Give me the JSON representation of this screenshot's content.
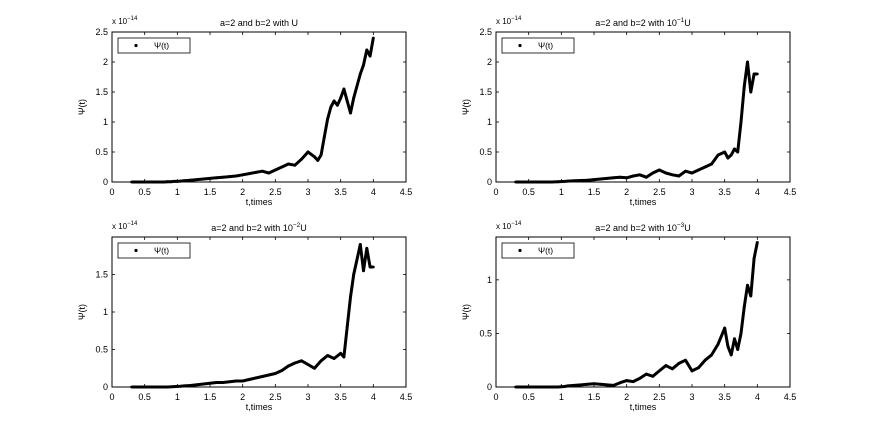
{
  "chart_data": [
    {
      "type": "line",
      "title": "a=2 and b=2 with U",
      "title_parts": {
        "prefix": "a=2 and b=2 with ",
        "base": "",
        "exp": "",
        "suffix": "U"
      },
      "xlabel": "t,times",
      "ylabel": "Ψ(t)",
      "multiplier": {
        "base": "x 10",
        "exp": "−14"
      },
      "legend": "Ψ(t)",
      "legend_position": "top-left",
      "xlim": [
        0,
        4.5
      ],
      "ylim": [
        0,
        2.5
      ],
      "xticks": [
        0,
        0.5,
        1,
        1.5,
        2,
        2.5,
        3,
        3.5,
        4,
        4.5
      ],
      "yticks": [
        0,
        0.5,
        1,
        1.5,
        2,
        2.5
      ],
      "xtick_labels": [
        "0",
        "0.5",
        "1",
        "1.5",
        "2",
        "2.5",
        "3",
        "3.5",
        "4",
        "4.5"
      ],
      "ytick_labels": [
        "0",
        "0.5",
        "1",
        "1.5",
        "2",
        "2.5"
      ],
      "x": [
        0.3,
        0.45,
        0.55,
        0.65,
        0.75,
        0.8,
        0.85,
        0.9,
        0.95,
        1.0,
        1.05,
        1.1,
        1.2,
        1.3,
        1.4,
        1.5,
        1.6,
        1.7,
        1.8,
        1.9,
        2.0,
        2.1,
        2.2,
        2.3,
        2.4,
        2.5,
        2.6,
        2.7,
        2.8,
        2.9,
        3.0,
        3.1,
        3.15,
        3.2,
        3.25,
        3.3,
        3.35,
        3.4,
        3.45,
        3.5,
        3.55,
        3.6,
        3.65,
        3.7,
        3.75,
        3.8,
        3.85,
        3.9,
        3.95,
        4.0
      ],
      "y": [
        0.0,
        0.0,
        0.0,
        0.0,
        0.0,
        0.0,
        0.005,
        0.005,
        0.01,
        0.01,
        0.015,
        0.02,
        0.03,
        0.04,
        0.05,
        0.06,
        0.07,
        0.08,
        0.09,
        0.1,
        0.12,
        0.14,
        0.16,
        0.18,
        0.15,
        0.2,
        0.25,
        0.3,
        0.28,
        0.38,
        0.5,
        0.42,
        0.36,
        0.45,
        0.75,
        1.05,
        1.25,
        1.35,
        1.28,
        1.4,
        1.55,
        1.35,
        1.15,
        1.4,
        1.6,
        1.8,
        1.95,
        2.2,
        2.1,
        2.4
      ]
    },
    {
      "type": "line",
      "title": "a=2 and b=2 with 10⁻¹U",
      "title_parts": {
        "prefix": "a=2 and b=2 with ",
        "base": "10",
        "exp": "−1",
        "suffix": "U"
      },
      "xlabel": "t,times",
      "ylabel": "Ψ(t)",
      "multiplier": {
        "base": "x 10",
        "exp": "−14"
      },
      "legend": "Ψ(t)",
      "legend_position": "top-left",
      "xlim": [
        0,
        4.5
      ],
      "ylim": [
        0,
        2.5
      ],
      "xticks": [
        0,
        0.5,
        1,
        1.5,
        2,
        2.5,
        3,
        3.5,
        4,
        4.5
      ],
      "yticks": [
        0,
        0.5,
        1,
        1.5,
        2,
        2.5
      ],
      "xtick_labels": [
        "0",
        "0.5",
        "1",
        "1.5",
        "2",
        "2.5",
        "3",
        "3.5",
        "4",
        "4.5"
      ],
      "ytick_labels": [
        "0",
        "0.5",
        "1",
        "1.5",
        "2",
        "2.5"
      ],
      "x": [
        0.3,
        0.45,
        0.55,
        0.65,
        0.75,
        0.85,
        0.95,
        1.05,
        1.1,
        1.2,
        1.3,
        1.4,
        1.5,
        1.6,
        1.7,
        1.8,
        1.9,
        2.0,
        2.1,
        2.2,
        2.3,
        2.4,
        2.5,
        2.6,
        2.7,
        2.8,
        2.9,
        3.0,
        3.1,
        3.2,
        3.3,
        3.4,
        3.5,
        3.55,
        3.6,
        3.65,
        3.7,
        3.75,
        3.8,
        3.85,
        3.9,
        3.95,
        4.0
      ],
      "y": [
        0.0,
        0.0,
        0.0,
        0.0,
        0.0,
        0.0,
        0.005,
        0.01,
        0.015,
        0.02,
        0.025,
        0.03,
        0.04,
        0.05,
        0.06,
        0.07,
        0.08,
        0.07,
        0.1,
        0.12,
        0.08,
        0.15,
        0.2,
        0.15,
        0.12,
        0.1,
        0.18,
        0.15,
        0.2,
        0.25,
        0.3,
        0.45,
        0.5,
        0.4,
        0.45,
        0.55,
        0.5,
        1.0,
        1.6,
        2.0,
        1.5,
        1.8,
        1.8
      ]
    },
    {
      "type": "line",
      "title": "a=2 and b=2 with 10⁻²U",
      "title_parts": {
        "prefix": "a=2 and b=2 with ",
        "base": "10",
        "exp": "−2",
        "suffix": "U"
      },
      "xlabel": "t,times",
      "ylabel": "Ψ(t)",
      "multiplier": {
        "base": "x 10",
        "exp": "−14"
      },
      "legend": "Ψ(t)",
      "legend_position": "top-left",
      "xlim": [
        0,
        4.5
      ],
      "ylim": [
        0,
        2
      ],
      "xticks": [
        0,
        0.5,
        1,
        1.5,
        2,
        2.5,
        3,
        3.5,
        4,
        4.5
      ],
      "yticks": [
        0,
        0.5,
        1,
        1.5
      ],
      "xtick_labels": [
        "0",
        "0.5",
        "1",
        "1.5",
        "2",
        "2.5",
        "3",
        "3.5",
        "4",
        "4.5"
      ],
      "ytick_labels": [
        "0",
        "0.5",
        "1",
        "1.5"
      ],
      "x": [
        0.3,
        0.45,
        0.55,
        0.65,
        0.75,
        0.85,
        0.95,
        1.05,
        1.1,
        1.2,
        1.3,
        1.4,
        1.5,
        1.6,
        1.7,
        1.8,
        1.9,
        2.0,
        2.1,
        2.2,
        2.3,
        2.4,
        2.5,
        2.6,
        2.7,
        2.8,
        2.9,
        3.0,
        3.1,
        3.2,
        3.3,
        3.4,
        3.5,
        3.55,
        3.6,
        3.65,
        3.7,
        3.75,
        3.8,
        3.85,
        3.9,
        3.95,
        4.0
      ],
      "y": [
        0.0,
        0.0,
        0.0,
        0.0,
        0.0,
        0.0,
        0.005,
        0.01,
        0.015,
        0.02,
        0.03,
        0.04,
        0.05,
        0.06,
        0.06,
        0.07,
        0.08,
        0.08,
        0.1,
        0.12,
        0.14,
        0.16,
        0.18,
        0.22,
        0.28,
        0.32,
        0.35,
        0.3,
        0.25,
        0.35,
        0.42,
        0.38,
        0.45,
        0.4,
        0.8,
        1.2,
        1.5,
        1.7,
        1.9,
        1.55,
        1.85,
        1.6,
        1.6
      ]
    },
    {
      "type": "line",
      "title": "a=2 and b=2 with 10⁻³U",
      "title_parts": {
        "prefix": "a=2 and b=2 with ",
        "base": "10",
        "exp": "−3",
        "suffix": "U"
      },
      "xlabel": "t,times",
      "ylabel": "Ψ(t)",
      "multiplier": {
        "base": "x 10",
        "exp": "−14"
      },
      "legend": "Ψ(t)",
      "legend_position": "top-left",
      "xlim": [
        0,
        4.5
      ],
      "ylim": [
        0,
        1.4
      ],
      "xticks": [
        0,
        0.5,
        1,
        1.5,
        2,
        2.5,
        3,
        3.5,
        4,
        4.5
      ],
      "yticks": [
        0,
        0.5,
        1
      ],
      "xtick_labels": [
        "0",
        "0.5",
        "1",
        "1.5",
        "2",
        "2.5",
        "3",
        "3.5",
        "4",
        "4.5"
      ],
      "ytick_labels": [
        "0",
        "0.5",
        "1"
      ],
      "x": [
        0.3,
        0.45,
        0.55,
        0.65,
        0.75,
        0.85,
        0.95,
        1.05,
        1.1,
        1.2,
        1.3,
        1.4,
        1.5,
        1.6,
        1.7,
        1.8,
        1.9,
        2.0,
        2.1,
        2.2,
        2.3,
        2.4,
        2.5,
        2.6,
        2.7,
        2.8,
        2.9,
        3.0,
        3.1,
        3.2,
        3.3,
        3.4,
        3.5,
        3.55,
        3.6,
        3.65,
        3.7,
        3.75,
        3.8,
        3.85,
        3.9,
        3.95,
        4.0
      ],
      "y": [
        0.0,
        0.0,
        0.0,
        0.0,
        0.0,
        0.0,
        0.0,
        0.005,
        0.01,
        0.015,
        0.02,
        0.025,
        0.03,
        0.025,
        0.02,
        0.015,
        0.04,
        0.06,
        0.05,
        0.08,
        0.12,
        0.1,
        0.15,
        0.2,
        0.17,
        0.22,
        0.25,
        0.15,
        0.18,
        0.25,
        0.3,
        0.4,
        0.55,
        0.38,
        0.3,
        0.45,
        0.35,
        0.5,
        0.75,
        0.95,
        0.85,
        1.2,
        1.35
      ]
    }
  ]
}
